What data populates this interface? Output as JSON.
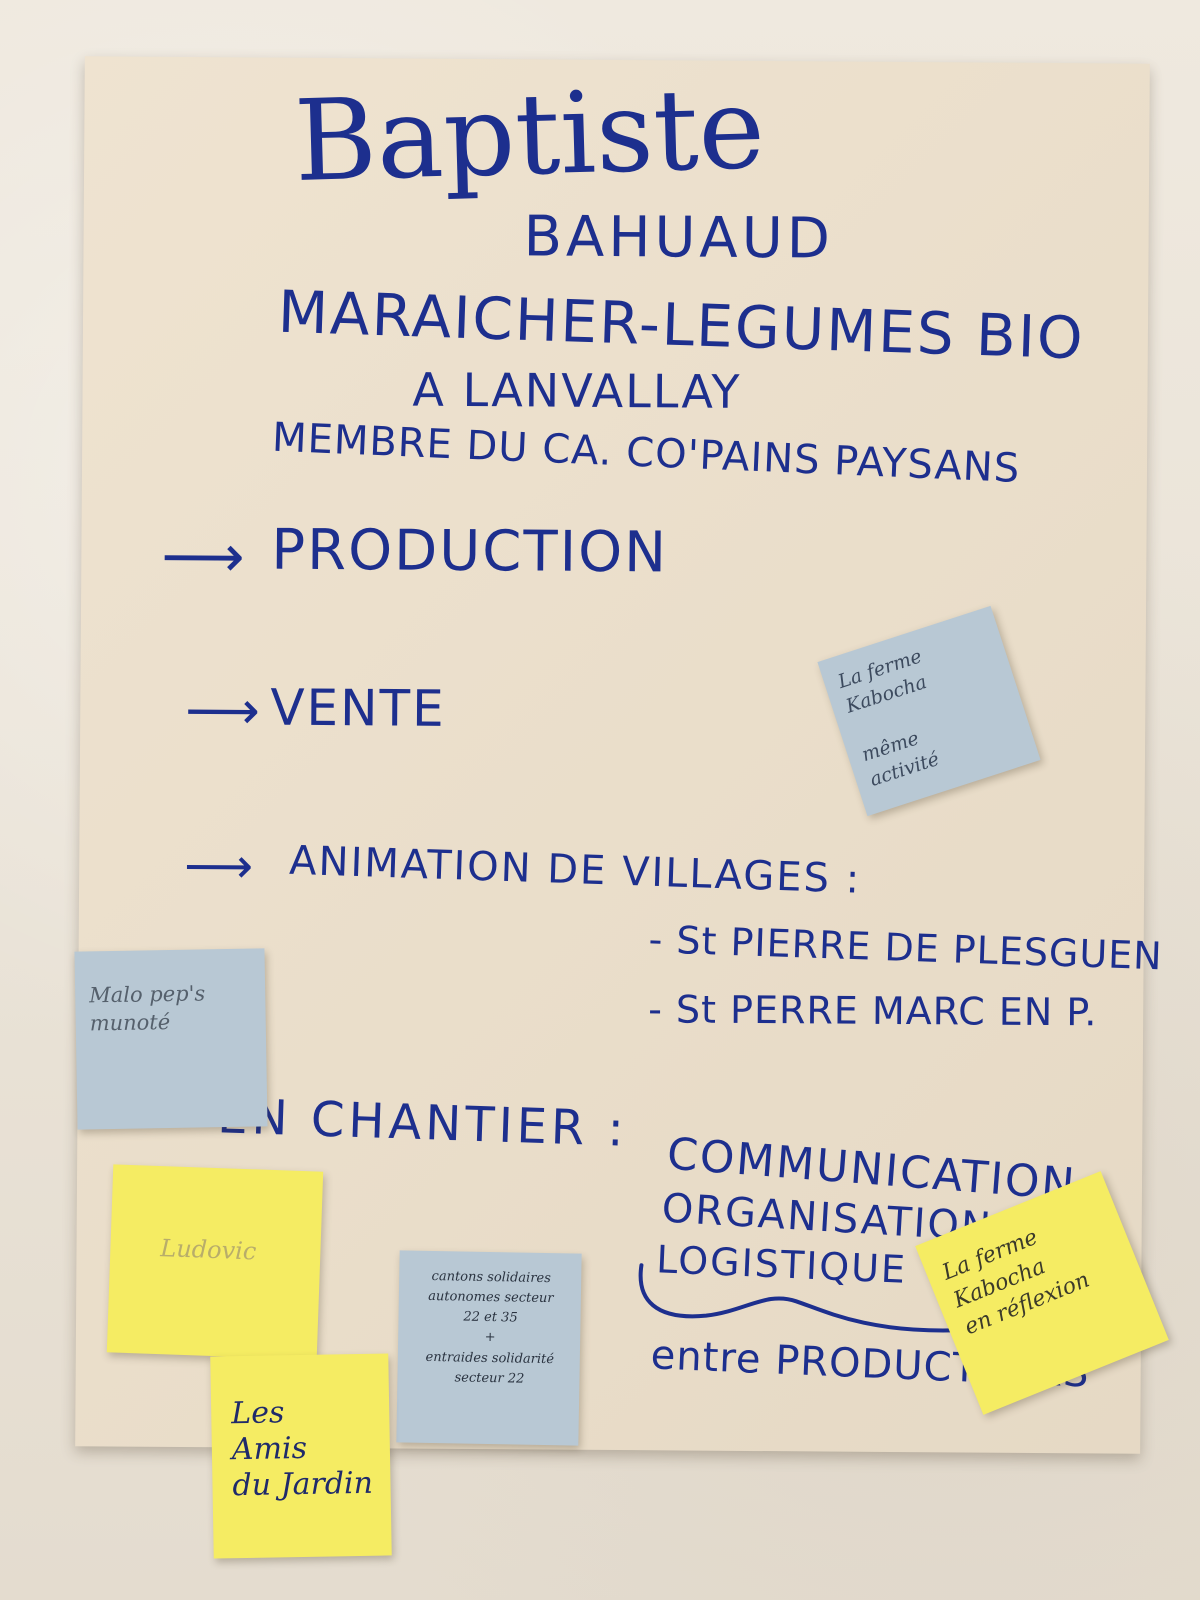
{
  "poster": {
    "name_first": "Baptiste",
    "name_last": "BAHUAUD",
    "title_line_1": "MARAICHER-LEGUMES BIO",
    "title_line_2": "A LANVALLAY",
    "title_line_3": "MEMBRE DU CA. CO'PAINS PAYSANS",
    "arrow_glyph": "⟶",
    "sections": {
      "production": "PRODUCTION",
      "vente": "VENTE",
      "animation": "ANIMATION DE VILLAGES :"
    },
    "villages": [
      "- St PIERRE DE PLESGUEN",
      "- St PERRE MARC EN P."
    ],
    "chantier_label": "EN CHANTIER :",
    "chantier_items": [
      "COMMUNICATION",
      "ORGANISATION",
      "LOGISTIQUE"
    ],
    "chantier_footer": "entre PRODUCTEURS",
    "ink_color": "#1d2f8e"
  },
  "sticky_notes": {
    "kabocha_1": {
      "text": "La ferme\nKabocha\n\nmême\nactivité",
      "color": "light-blue"
    },
    "malo": {
      "text": "Malo pep's\nmunoté",
      "color": "light-blue"
    },
    "ludovic": {
      "text": "Ludovic",
      "color": "yellow"
    },
    "amis": {
      "text": "Les\nAmis\ndu Jardin",
      "color": "yellow"
    },
    "cantons": {
      "text": "cantons solidaires\nautonomes secteur\n22 et 35\n+\nentraides solidarité\nsecteur 22",
      "color": "light-blue"
    },
    "kabocha_2": {
      "text": "La ferme\nKabocha\nen réflexion",
      "color": "yellow"
    }
  }
}
